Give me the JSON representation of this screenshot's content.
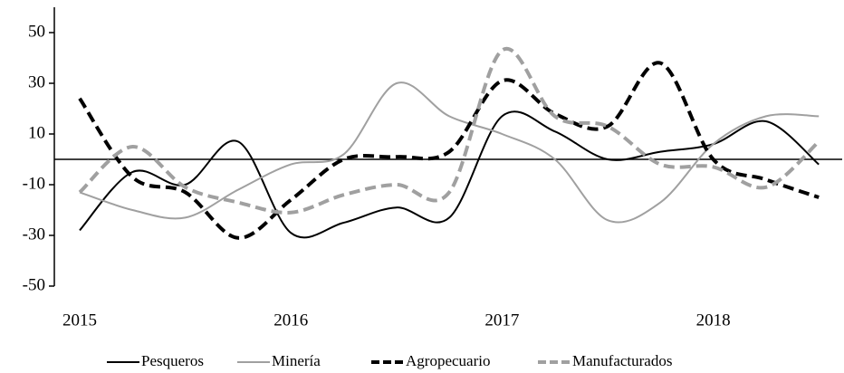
{
  "chart_data": {
    "type": "line",
    "categories": [
      "2015",
      null,
      null,
      null,
      "2016",
      null,
      null,
      null,
      "2017",
      null,
      null,
      null,
      "2018",
      null,
      null
    ],
    "series": [
      {
        "name": "Pesqueros",
        "color": "#000000",
        "dash": false,
        "values": [
          -28,
          -5,
          -10,
          7,
          -29,
          -25,
          -19,
          -23,
          17,
          11,
          0,
          3,
          6,
          15,
          -2
        ]
      },
      {
        "name": "Minería",
        "color": "#a0a0a0",
        "dash": false,
        "values": [
          -13,
          -20,
          -23,
          -12,
          -2,
          2,
          30,
          17,
          10,
          0,
          -24,
          -17,
          6,
          17,
          17
        ]
      },
      {
        "name": "Agropecuario",
        "color": "#000000",
        "dash": true,
        "values": [
          24,
          -7,
          -13,
          -31,
          -16,
          0,
          1,
          3,
          31,
          18,
          13,
          38,
          0,
          -8,
          -15
        ]
      },
      {
        "name": "Manufacturados",
        "color": "#a0a0a0",
        "dash": true,
        "values": [
          -13,
          5,
          -11,
          -17,
          -21,
          -14,
          -10,
          -13,
          43,
          17,
          13,
          -2,
          -3,
          -11,
          7
        ]
      }
    ],
    "ylim": [
      -50,
      60
    ],
    "yticks": [
      -50,
      -30,
      -10,
      10,
      30,
      50
    ],
    "legend": "bottom"
  }
}
